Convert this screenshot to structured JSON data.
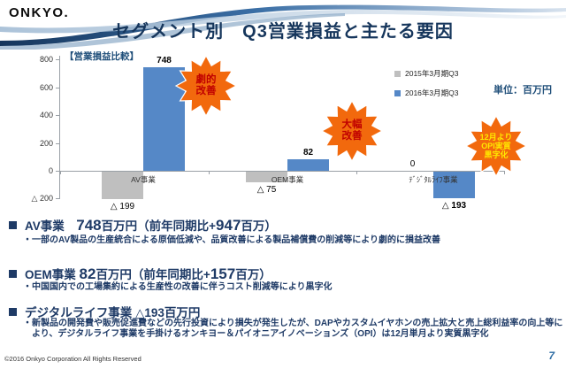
{
  "slide": {
    "logo": "ONKYO.",
    "title": "セグメント別　Q3営業損益と主たる要因",
    "page_number": "7",
    "copyright": "©2016 Onkyo Corporation All Rights Reserved"
  },
  "chart": {
    "section_label": "【営業損益比較】",
    "unit_label": "単位：百万円",
    "legend": [
      {
        "label": "2015年3月期Q3",
        "color": "#BFBFBF"
      },
      {
        "label": "2016年3月期Q3",
        "color": "#5588C7"
      }
    ],
    "annotations": [
      {
        "text": "劇的\n改善",
        "text_color": "#C00000",
        "fill": "#F2690D"
      },
      {
        "text": "大幅\n改善",
        "text_color": "#C00000",
        "fill": "#F2690D"
      },
      {
        "text": "12月より\nOPI実質\n黒字化",
        "text_color": "#FFE800",
        "fill": "#F2690D"
      }
    ]
  },
  "chart_data": {
    "type": "bar",
    "title": "【営業損益比較】",
    "unit": "百万円",
    "categories": [
      "AV事業",
      "OEM事業",
      "ﾃﾞｼﾞﾀﾙﾗｲﾌ事業"
    ],
    "series": [
      {
        "name": "2015年3月期Q3",
        "color": "#BFBFBF",
        "values": [
          -199,
          -75,
          0
        ],
        "labels": [
          "△ 199",
          "△ 75",
          "0"
        ]
      },
      {
        "name": "2016年3月期Q3",
        "color": "#5588C7",
        "values": [
          748,
          82,
          -193
        ],
        "labels": [
          "748",
          "82",
          "△ 193"
        ]
      }
    ],
    "ylim": [
      -200,
      800
    ],
    "y_ticks": [
      {
        "v": 800,
        "label": "800"
      },
      {
        "v": 600,
        "label": "600"
      },
      {
        "v": 400,
        "label": "400"
      },
      {
        "v": 200,
        "label": "200"
      },
      {
        "v": 0,
        "label": "0"
      },
      {
        "v": -200,
        "label": "△ 200"
      }
    ],
    "grid": false,
    "legend_position": "right"
  },
  "bullets": [
    {
      "parts": [
        "AV事業　",
        "748",
        "百万円（前年同期比+",
        "947",
        "百万）"
      ],
      "detail": "・一部のAV製品の生産統合による原価低減や、品質改善による製品補償費の削減等により劇的に損益改善"
    },
    {
      "parts": [
        "OEM事業 ",
        "82",
        "百万円（前年同期比+",
        "157",
        "百万）"
      ],
      "detail": "・中国国内での工場集約による生産性の改善に伴うコスト削減等により黒字化"
    },
    {
      "parts": [
        "デジタルライフ事業 △193百万円",
        "",
        "",
        "",
        ""
      ],
      "detail": "・新製品の開発費や販売促進費などの先行投資により損失が発生したが、DAPやカスタムイヤホンの売上拡大と売上総利益率の向上等により、デジタルライフ事業を手掛けるオンキヨー＆パイオニアイノベーションズ（OPI）は12月単月より実質黒字化"
    }
  ],
  "colors": {
    "title_navy": "#16365C",
    "body_navy": "#1E3A66",
    "bar_blue": "#5588C7",
    "bar_gray": "#BFBFBF",
    "burst_orange": "#F2690D",
    "page_number_blue": "#2E6DA4"
  }
}
